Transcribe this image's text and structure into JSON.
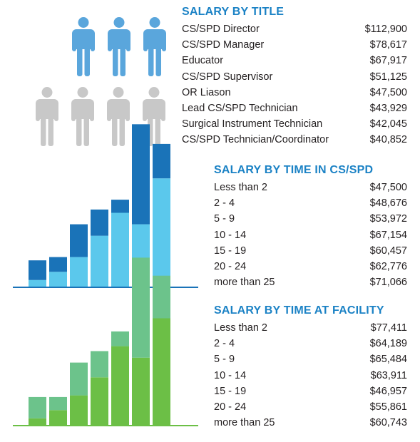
{
  "colors": {
    "heading": "#1b82c5",
    "person_highlight": "#5aa6dc",
    "person_muted": "#c8c8c8",
    "chart1_dark": "#1a73b8",
    "chart1_light": "#5bc8ec",
    "chart1_axis": "#1a73b8",
    "chart2_dark": "#6cc38b",
    "chart2_light": "#6cbf46",
    "chart2_axis": "#6cbf46"
  },
  "title_section": {
    "heading": "SALARY BY TITLE",
    "icons": {
      "highlighted_count": 3,
      "muted_count": 4,
      "icon": "person-icon"
    },
    "rows": [
      {
        "label": "CS/SPD Director",
        "value": "$112,900"
      },
      {
        "label": "CS/SPD Manager",
        "value": "$78,617"
      },
      {
        "label": "Educator",
        "value": "$67,917"
      },
      {
        "label": "CS/SPD Supervisor",
        "value": "$51,125"
      },
      {
        "label": "OR Liason",
        "value": "$47,500"
      },
      {
        "label": "Lead CS/SPD Technician",
        "value": "$43,929"
      },
      {
        "label": "Surgical Instrument Technician",
        "value": "$42,045"
      },
      {
        "label": "CS/SPD Technician/Coordinator",
        "value": "$40,852"
      }
    ]
  },
  "cs_section": {
    "heading": "SALARY BY TIME IN CS/SPD",
    "rows": [
      {
        "label": "Less than 2",
        "value": "$47,500"
      },
      {
        "label": "2 - 4",
        "value": "$48,676"
      },
      {
        "label": "5 - 9",
        "value": "$53,972"
      },
      {
        "label": "10 - 14",
        "value": "$67,154"
      },
      {
        "label": "15 - 19",
        "value": "$60,457"
      },
      {
        "label": "20 - 24",
        "value": "$62,776"
      },
      {
        "label": "more than 25",
        "value": "$71,066"
      }
    ]
  },
  "facility_section": {
    "heading": "SALARY BY TIME AT FACILITY",
    "rows": [
      {
        "label": "Less than 2",
        "value": "$77,411"
      },
      {
        "label": "2 - 4",
        "value": "$64,189"
      },
      {
        "label": "5 - 9",
        "value": "$65,484"
      },
      {
        "label": "10 - 14",
        "value": "$63,911"
      },
      {
        "label": "15 - 19",
        "value": "$46,957"
      },
      {
        "label": "20 - 24",
        "value": "$55,861"
      },
      {
        "label": "more than 25",
        "value": "$60,743"
      }
    ]
  },
  "chart_data": [
    {
      "type": "bar",
      "stacked": true,
      "categories": [
        "Less than 2",
        "2 - 4",
        "5 - 9",
        "10 - 14",
        "15 - 19",
        "20 - 24",
        "more than 25"
      ],
      "series": [
        {
          "values": [
            0.04,
            0.09,
            0.18,
            0.31,
            0.45,
            0.38,
            0.66
          ],
          "color": "#5bc8ec"
        },
        {
          "values": [
            0.12,
            0.09,
            0.2,
            0.16,
            0.08,
            0.61,
            0.21
          ],
          "color": "#1a73b8"
        }
      ],
      "ylim": [
        0,
        1
      ]
    },
    {
      "type": "bar",
      "stacked": true,
      "categories": [
        "Less than 2",
        "2 - 4",
        "5 - 9",
        "10 - 14",
        "15 - 19",
        "20 - 24",
        "more than 25"
      ],
      "series": [
        {
          "values": [
            0.04,
            0.09,
            0.18,
            0.29,
            0.48,
            0.41,
            0.65
          ],
          "color": "#6cbf46"
        },
        {
          "values": [
            0.13,
            0.08,
            0.2,
            0.16,
            0.09,
            0.61,
            0.26
          ],
          "color": "#6cc38b"
        }
      ],
      "ylim": [
        0,
        1
      ]
    }
  ]
}
